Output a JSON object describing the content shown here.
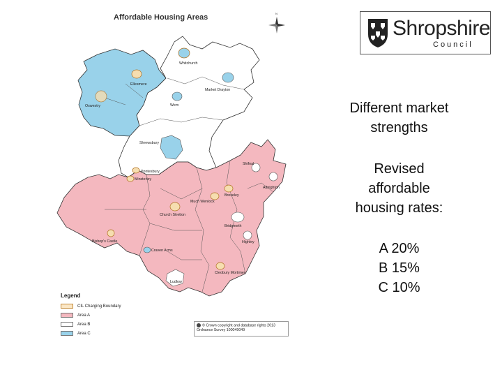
{
  "map": {
    "title": "Affordable Housing Areas",
    "colors": {
      "area_a": "#f4b8bf",
      "area_b": "#ffffff",
      "area_c": "#99d2ea",
      "charging_boundary": "#f6deb0",
      "outline": "#333333"
    },
    "towns": [
      "Whitchurch",
      "Ellesmere",
      "Market Drayton",
      "Wem",
      "Oswestry",
      "Shrewsbury",
      "Pontesbury",
      "Minsterley",
      "Shifnal",
      "Albrighton",
      "Broseley",
      "Much Wenlock",
      "Church Stretton",
      "Bridgnorth",
      "Bishop's Castle",
      "Craven Arms",
      "Highley",
      "Cleobury Mortimer",
      "Ludlow"
    ],
    "north_arrow": "north-arrow-icon"
  },
  "legend": {
    "title": "Legend",
    "items": [
      {
        "label": "CIL Charging Boundary",
        "color": "#fbe7c6"
      },
      {
        "label": "Area A",
        "color": "#f4b8bf"
      },
      {
        "label": "Area B",
        "color": "#ffffff"
      },
      {
        "label": "Area C",
        "color": "#99d2ea"
      }
    ]
  },
  "copyright": {
    "line1": "© Crown copyright and database rights 2013",
    "line2": "Ordnance Survey 100049049"
  },
  "logo": {
    "name": "Shropshire",
    "sub": "Council",
    "icon": "council-shield-icon"
  },
  "content": {
    "heading_line1": "Different market",
    "heading_line2": "strengths",
    "rates_line1": "Revised",
    "rates_line2": "affordable",
    "rates_line3": "housing rates:",
    "rate_a": "A 20%",
    "rate_b": "B 15%",
    "rate_c": "C 10%"
  }
}
